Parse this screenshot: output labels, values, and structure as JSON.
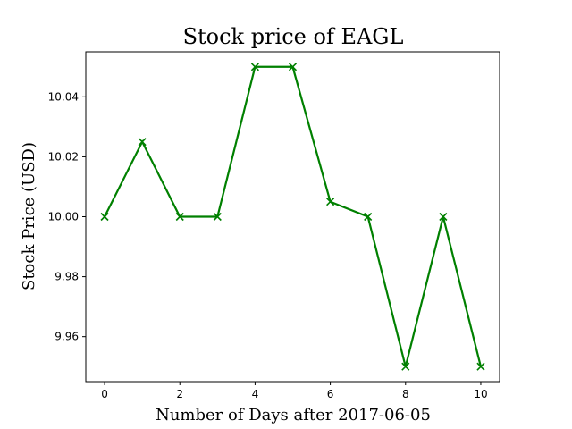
{
  "chart_data": {
    "type": "line",
    "title": "Stock price of EAGL",
    "xlabel": "Number of Days after 2017-06-05",
    "ylabel": "Stock Price (USD)",
    "x": [
      0,
      1,
      2,
      3,
      4,
      5,
      6,
      7,
      8,
      9,
      10
    ],
    "series": [
      {
        "values": [
          10.0,
          10.025,
          10.0,
          10.0,
          10.05,
          10.05,
          10.005,
          10.0,
          9.95,
          10.0,
          9.95
        ],
        "color": "#008000",
        "marker": "x"
      }
    ],
    "xlim": [
      -0.5,
      10.5
    ],
    "ylim": [
      9.945,
      10.055
    ],
    "xticks": [
      0,
      2,
      4,
      6,
      8,
      10
    ],
    "xtick_labels": [
      "0",
      "2",
      "4",
      "6",
      "8",
      "10"
    ],
    "yticks": [
      9.96,
      9.98,
      10.0,
      10.02,
      10.04
    ],
    "ytick_labels": [
      "9.96",
      "9.98",
      "10.00",
      "10.02",
      "10.04"
    ],
    "grid": false
  }
}
